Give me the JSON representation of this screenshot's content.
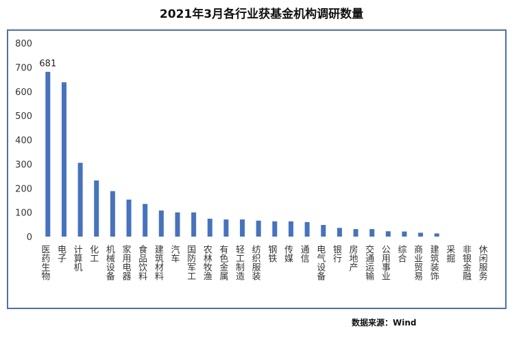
{
  "title": "2021年3月各行业获基金机构调研数量",
  "source": "数据来源：Wind",
  "chart_data": {
    "type": "bar",
    "title": "2021年3月各行业获基金机构调研数量",
    "xlabel": "",
    "ylabel": "",
    "ylim": [
      0,
      800
    ],
    "yticks": [
      0,
      100,
      200,
      300,
      400,
      500,
      600,
      700,
      800
    ],
    "grid": false,
    "bar_color": "#4472c4",
    "categories": [
      "医药生物",
      "电子",
      "计算机",
      "化工",
      "机械设备",
      "家用电器",
      "食品饮料",
      "建筑材料",
      "汽车",
      "国防军工",
      "农林牧渔",
      "有色金属",
      "轻工制造",
      "纺织服装",
      "钢铁",
      "传媒",
      "通信",
      "电气设备",
      "银行",
      "房地产",
      "交通运输",
      "公用事业",
      "综合",
      "商业贸易",
      "建筑装饰",
      "采掘",
      "非银金融",
      "休闲服务"
    ],
    "values": [
      681,
      638,
      305,
      232,
      188,
      153,
      135,
      108,
      100,
      100,
      74,
      71,
      71,
      66,
      63,
      63,
      60,
      48,
      36,
      31,
      31,
      22,
      21,
      16,
      13,
      0,
      0,
      0
    ],
    "data_labels": [
      {
        "index": 0,
        "text": "681"
      }
    ]
  }
}
